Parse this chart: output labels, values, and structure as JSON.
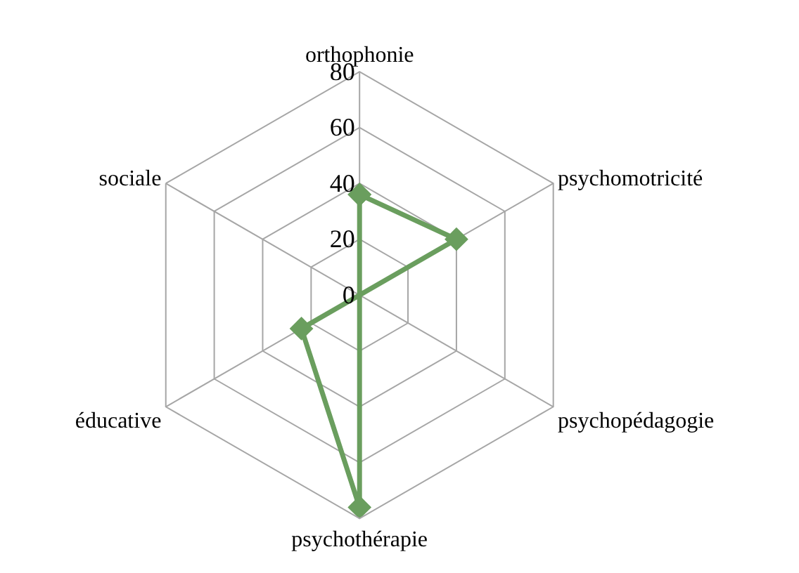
{
  "chart_data": {
    "type": "radar",
    "categories": [
      "orthophonie",
      "psychomotricité",
      "psychopédagogie",
      "psychothérapie",
      "éducative",
      "sociale"
    ],
    "series": [
      {
        "color": "#6a9e5e",
        "values": [
          36,
          40,
          0,
          76,
          24,
          0
        ]
      }
    ],
    "ylim": [
      0,
      80
    ],
    "yticks": [
      0,
      20,
      40,
      60,
      80
    ],
    "grid": true,
    "marker": "diamond",
    "line_style": "solid"
  }
}
